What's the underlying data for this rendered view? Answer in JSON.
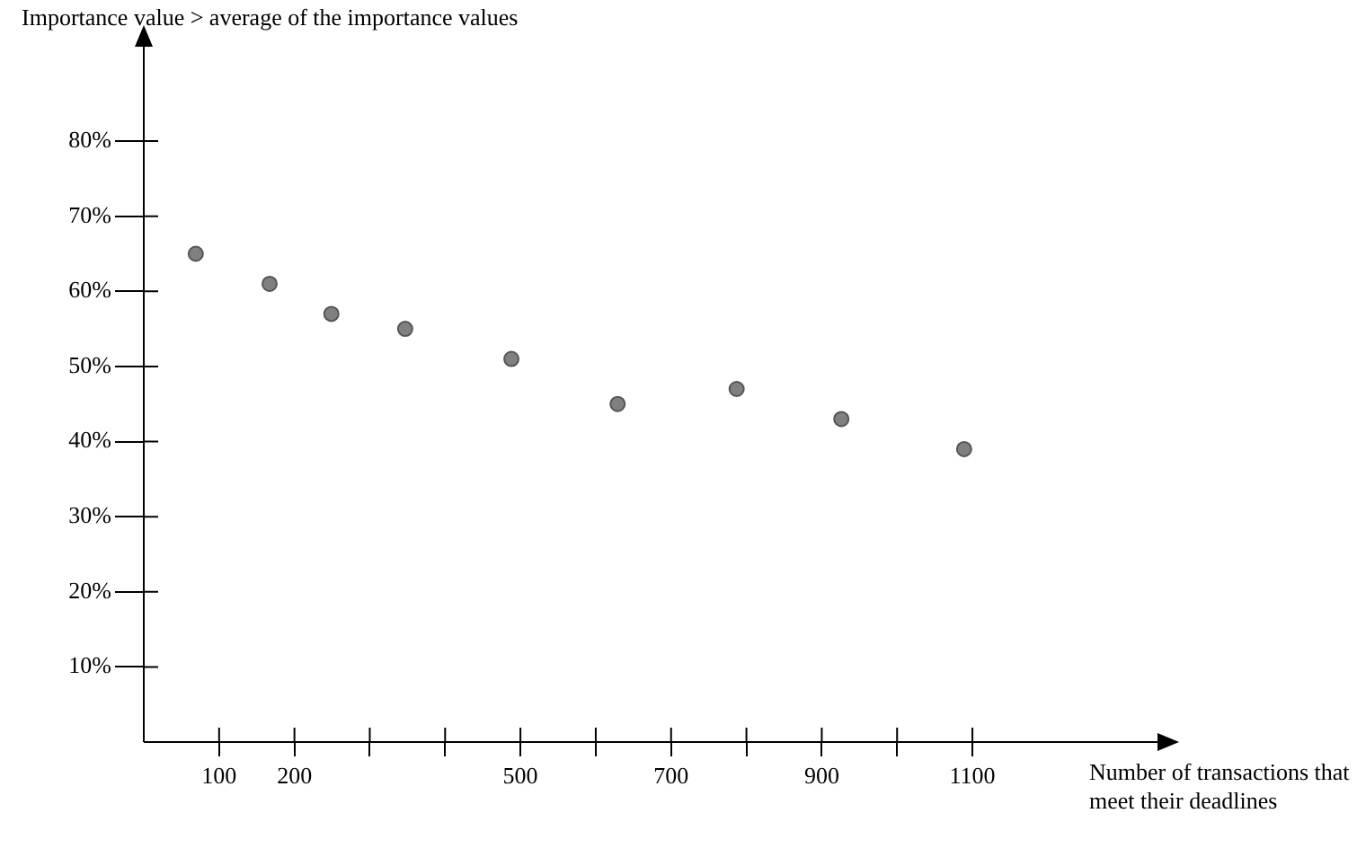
{
  "chart_data": {
    "type": "scatter",
    "ylabel": "Importance value > average of the importance values",
    "xlabel": "Number of transactions that meet their deadlines",
    "x": [
      69,
      167,
      249,
      347,
      488,
      629,
      787,
      926,
      1089
    ],
    "values": [
      65,
      61,
      57,
      55,
      51,
      45,
      47,
      43,
      39
    ],
    "color": "#808080",
    "marker": "circle",
    "xlim": [
      0,
      1360
    ],
    "ylim": [
      0,
      94
    ],
    "xticks": [
      100,
      200,
      {
        "value": 300,
        "label": null
      },
      {
        "value": 400,
        "label": null
      },
      500,
      {
        "value": 600,
        "label": null
      },
      700,
      {
        "value": 800,
        "label": null
      },
      900,
      {
        "value": 1000,
        "label": null
      },
      1100
    ],
    "yticks": [
      {
        "value": 10,
        "label": "10%"
      },
      {
        "value": 20,
        "label": "20%"
      },
      {
        "value": 30,
        "label": "30%"
      },
      {
        "value": 40,
        "label": "40%"
      },
      {
        "value": 50,
        "label": "50%"
      },
      {
        "value": 60,
        "label": "60%"
      },
      {
        "value": 70,
        "label": "70%"
      },
      {
        "value": 80,
        "label": "80%"
      }
    ]
  }
}
